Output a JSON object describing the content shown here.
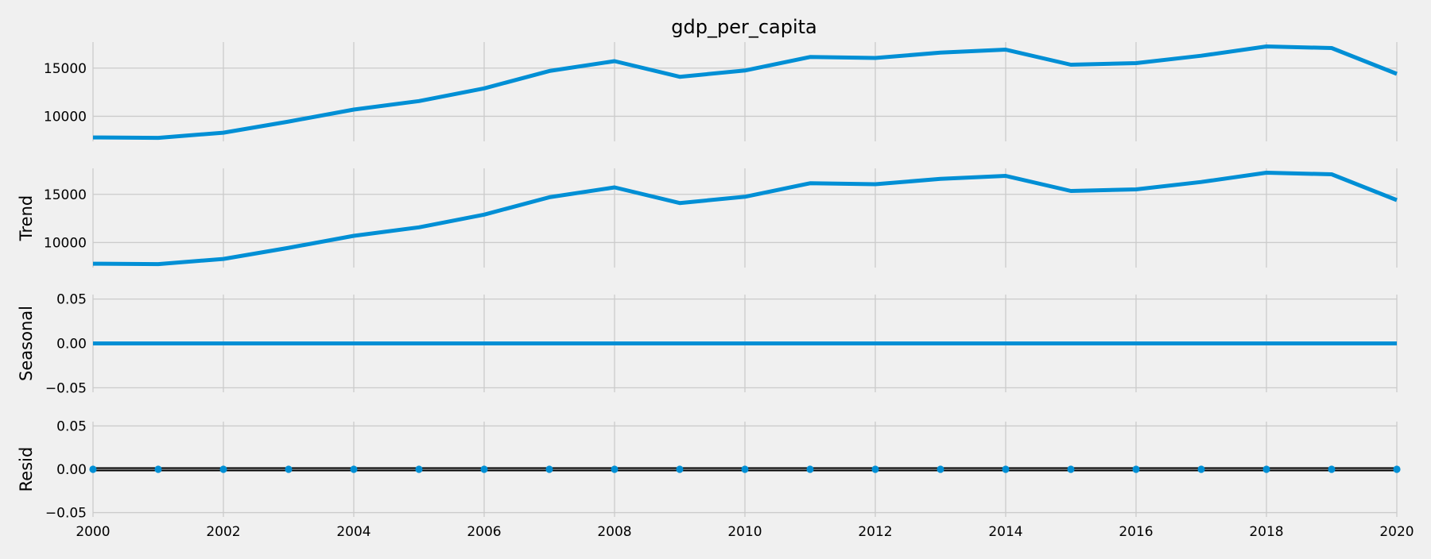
{
  "chart_data": {
    "type": "line",
    "title": "gdp_per_capita",
    "x": [
      2000,
      2001,
      2002,
      2003,
      2004,
      2005,
      2006,
      2007,
      2008,
      2009,
      2010,
      2011,
      2012,
      2013,
      2014,
      2015,
      2016,
      2017,
      2018,
      2019,
      2020
    ],
    "xlim": [
      2000,
      2020
    ],
    "xticks": [
      2000,
      2002,
      2004,
      2006,
      2008,
      2010,
      2012,
      2014,
      2016,
      2018,
      2020
    ],
    "xtick_labels": [
      "2000",
      "2002",
      "2004",
      "2006",
      "2008",
      "2010",
      "2012",
      "2014",
      "2016",
      "2018",
      "2020"
    ],
    "line_color": "#008fd5",
    "zero_line_color": "#000000",
    "grid": true,
    "panels": [
      {
        "id": "observed",
        "ylabel": "",
        "type": "line",
        "ylim": [
          7400,
          17700
        ],
        "yticks": [
          10000,
          15000
        ],
        "ytick_labels": [
          "10000",
          "15000"
        ],
        "values": [
          7800,
          7760,
          8300,
          9450,
          10700,
          11580,
          12900,
          14700,
          15720,
          14100,
          14750,
          16150,
          16050,
          16600,
          16920,
          15350,
          15520,
          16280,
          17250,
          17080,
          14400
        ]
      },
      {
        "id": "trend",
        "ylabel": "Trend",
        "type": "line",
        "ylim": [
          7400,
          17700
        ],
        "yticks": [
          10000,
          15000
        ],
        "ytick_labels": [
          "10000",
          "15000"
        ],
        "values": [
          7800,
          7760,
          8300,
          9450,
          10700,
          11580,
          12900,
          14700,
          15720,
          14100,
          14750,
          16150,
          16050,
          16600,
          16920,
          15350,
          15520,
          16280,
          17250,
          17080,
          14400
        ]
      },
      {
        "id": "seasonal",
        "ylabel": "Seasonal",
        "type": "line",
        "ylim": [
          -0.055,
          0.055
        ],
        "yticks": [
          -0.05,
          0.0,
          0.05
        ],
        "ytick_labels": [
          "−0.05",
          "0.00",
          "0.05"
        ],
        "values": [
          0,
          0,
          0,
          0,
          0,
          0,
          0,
          0,
          0,
          0,
          0,
          0,
          0,
          0,
          0,
          0,
          0,
          0,
          0,
          0,
          0
        ]
      },
      {
        "id": "resid",
        "ylabel": "Resid",
        "type": "scatter",
        "ylim": [
          -0.055,
          0.055
        ],
        "yticks": [
          -0.05,
          0.0,
          0.05
        ],
        "ytick_labels": [
          "−0.05",
          "0.00",
          "0.05"
        ],
        "values": [
          0,
          0,
          0,
          0,
          0,
          0,
          0,
          0,
          0,
          0,
          0,
          0,
          0,
          0,
          0,
          0,
          0,
          0,
          0,
          0,
          0
        ]
      }
    ]
  }
}
